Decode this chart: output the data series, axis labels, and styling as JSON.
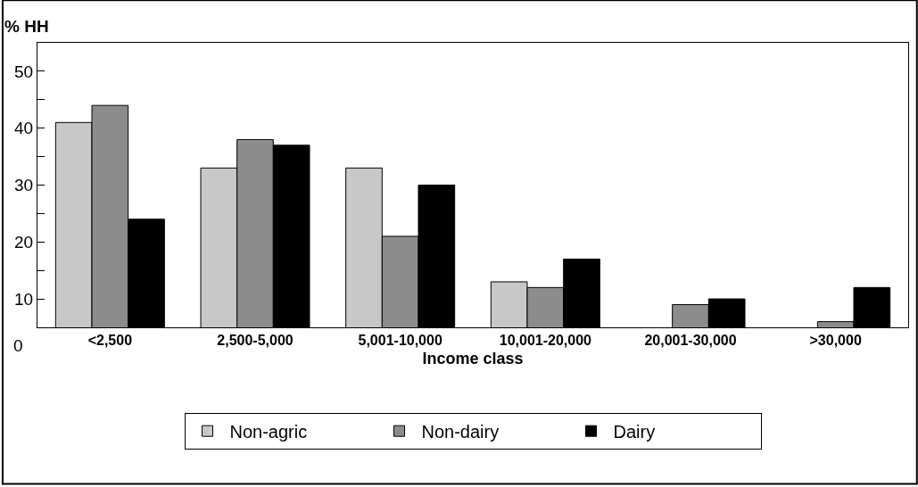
{
  "chart_data": {
    "type": "bar",
    "ylabel": "% HH",
    "xlabel": "Income class",
    "categories": [
      "<2,500",
      "2,500-5,000",
      "5,001-10,000",
      "10,001-20,000",
      "20,001-30,000",
      ">30,000"
    ],
    "series": [
      {
        "name": "Non-agric",
        "color": "#c8c8c8",
        "values": [
          41,
          33,
          33,
          13,
          null,
          null
        ]
      },
      {
        "name": "Non-dairy",
        "color": "#8c8c8c",
        "values": [
          44,
          38,
          21,
          12,
          9,
          6
        ]
      },
      {
        "name": "Dairy",
        "color": "#000000",
        "values": [
          24,
          37,
          30,
          17,
          10,
          12
        ]
      }
    ],
    "ylim": [
      5,
      55
    ],
    "yticks": [
      10,
      {
        "value": 15,
        "label": null
      },
      20,
      {
        "value": 25,
        "label": null
      },
      30,
      {
        "value": 35,
        "label": null
      },
      40,
      {
        "value": 45,
        "label": null
      },
      50
    ],
    "annotations": [
      "0"
    ],
    "legend": "bottom"
  }
}
